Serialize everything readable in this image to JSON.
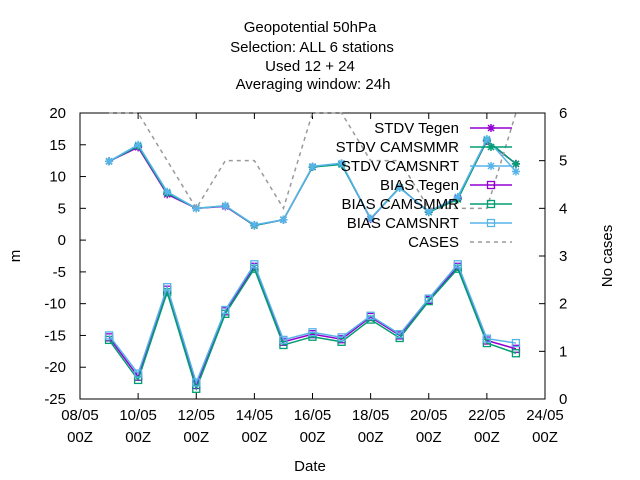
{
  "chart_data": {
    "type": "line",
    "title_lines": [
      "Geopotential 50hPa",
      "Selection: ALL      6 stations",
      "Used  12 + 24",
      "Averaging window: 24h"
    ],
    "xlabel": "Date",
    "ylabel": "m",
    "y2label": "No cases",
    "x_ticks": [
      {
        "day": 8,
        "top": "08/05",
        "bottom": "00Z"
      },
      {
        "day": 10,
        "top": "10/05",
        "bottom": "00Z"
      },
      {
        "day": 12,
        "top": "12/05",
        "bottom": "00Z"
      },
      {
        "day": 14,
        "top": "14/05",
        "bottom": "00Z"
      },
      {
        "day": 16,
        "top": "16/05",
        "bottom": "00Z"
      },
      {
        "day": 18,
        "top": "18/05",
        "bottom": "00Z"
      },
      {
        "day": 20,
        "top": "20/05",
        "bottom": "00Z"
      },
      {
        "day": 22,
        "top": "22/05",
        "bottom": "00Z"
      },
      {
        "day": 24,
        "top": "24/05",
        "bottom": "00Z"
      }
    ],
    "xlim": [
      8,
      24
    ],
    "ylim": [
      -25,
      20
    ],
    "y_ticks": [
      20,
      15,
      10,
      5,
      0,
      -5,
      -10,
      -15,
      -20,
      -25
    ],
    "y2lim": [
      0,
      6
    ],
    "y2_ticks": [
      6,
      5,
      4,
      3,
      2,
      1,
      0
    ],
    "legend_position": "top-right",
    "x": [
      9,
      10,
      11,
      12,
      13,
      14,
      15,
      16,
      17,
      18,
      19,
      20,
      21,
      22,
      23
    ],
    "series": [
      {
        "name": "STDV Tegen",
        "axis": "y1",
        "color": "#9400d3",
        "marker": "star",
        "dashed": false,
        "values": [
          12.4,
          14.6,
          7.2,
          5.0,
          5.3,
          2.3,
          3.2,
          11.5,
          12.0,
          3.3,
          8.3,
          4.4,
          6.6,
          15.6,
          12.0
        ]
      },
      {
        "name": "STDV CAMSMMR",
        "axis": "y1",
        "color": "#009e73",
        "marker": "star",
        "dashed": false,
        "values": [
          12.4,
          14.8,
          7.4,
          5.0,
          5.4,
          2.3,
          3.2,
          11.5,
          11.9,
          3.4,
          8.3,
          4.4,
          6.4,
          15.7,
          12.0
        ]
      },
      {
        "name": "STDV CAMSNRT",
        "axis": "y1",
        "color": "#56b4e9",
        "marker": "star",
        "dashed": false,
        "values": [
          12.4,
          15.0,
          7.6,
          5.0,
          5.4,
          2.4,
          3.2,
          11.6,
          12.1,
          3.4,
          8.2,
          4.5,
          6.8,
          15.9,
          10.8
        ]
      },
      {
        "name": "BIAS Tegen",
        "axis": "y1",
        "color": "#9400d3",
        "marker": "square",
        "dashed": false,
        "values": [
          -15.3,
          -21.5,
          -7.8,
          -22.8,
          -11.2,
          -4.2,
          -16.0,
          -14.8,
          -15.6,
          -12.1,
          -15.0,
          -9.4,
          -4.2,
          -15.8,
          -17.1
        ]
      },
      {
        "name": "BIAS CAMSMMR",
        "axis": "y1",
        "color": "#009e73",
        "marker": "square",
        "dashed": false,
        "values": [
          -15.7,
          -22.0,
          -8.2,
          -23.4,
          -11.6,
          -4.5,
          -16.5,
          -15.2,
          -16.0,
          -12.5,
          -15.4,
          -9.6,
          -4.5,
          -16.2,
          -17.8
        ]
      },
      {
        "name": "BIAS CAMSNRT",
        "axis": "y1",
        "color": "#56b4e9",
        "marker": "square",
        "dashed": false,
        "values": [
          -15.0,
          -21.0,
          -7.4,
          -22.4,
          -11.0,
          -3.8,
          -15.7,
          -14.5,
          -15.3,
          -11.9,
          -14.8,
          -9.2,
          -3.8,
          -15.5,
          -16.2
        ]
      },
      {
        "name": "CASES",
        "axis": "y2",
        "color": "#999999",
        "marker": "none",
        "dashed": true,
        "x": [
          9,
          10,
          11,
          12,
          13,
          14,
          15,
          16,
          17,
          18,
          19,
          20,
          21,
          22,
          23
        ],
        "values": [
          6,
          6,
          5,
          4,
          5,
          5,
          4,
          6,
          6,
          5,
          5,
          4,
          4,
          4,
          6
        ]
      }
    ]
  }
}
